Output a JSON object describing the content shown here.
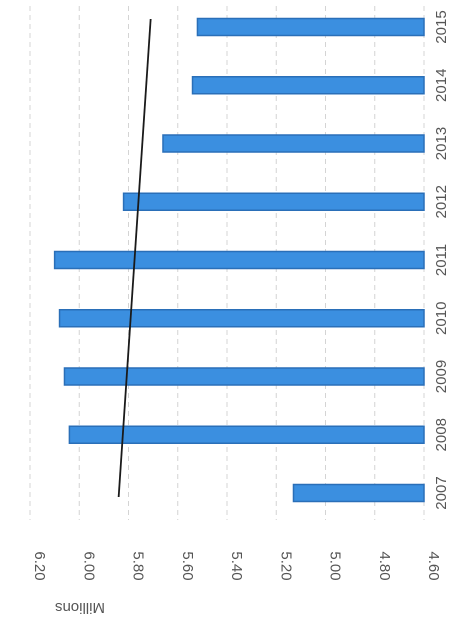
{
  "chart_data": {
    "type": "bar",
    "orientation": "rotated-90-clockwise",
    "categories": [
      "2007",
      "2008",
      "2009",
      "2010",
      "2011",
      "2012",
      "2013",
      "2014",
      "2015"
    ],
    "values": [
      5.13,
      6.04,
      6.06,
      6.08,
      6.1,
      5.82,
      5.66,
      5.54,
      5.52
    ],
    "ylabel": "Millions",
    "ylim": [
      4.6,
      6.2
    ],
    "yticks": [
      "4.60",
      "4.80",
      "5.00",
      "5.20",
      "5.40",
      "5.60",
      "5.80",
      "6.00",
      "6.20"
    ],
    "trendline": {
      "start": 5.84,
      "end": 5.71
    },
    "grid": true,
    "colors": {
      "bar": "#3b8fe0",
      "bar_edge": "#2a6fb8",
      "trendline": "#1a1a1a",
      "grid": "#d4d4d4"
    }
  }
}
